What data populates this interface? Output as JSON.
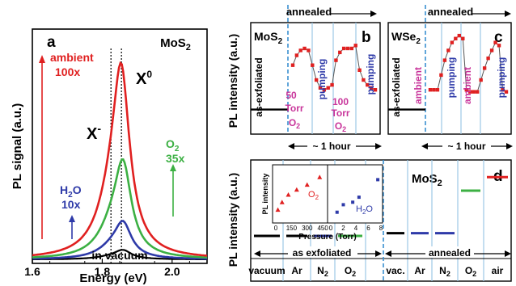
{
  "chart_data": [
    {
      "panel": "a",
      "type": "line",
      "title": "MoS2",
      "xlabel": "Energy (eV)",
      "ylabel": "PL signal (a.u.)",
      "xlim": [
        1.6,
        2.1
      ],
      "ylim": [
        0,
        1.2
      ],
      "x_ticks": [
        "1.6",
        "1.8",
        "2.0"
      ],
      "peak_labels": {
        "main": "X",
        "main_sup": "0",
        "side": "X",
        "side_sup": "-"
      },
      "series": [
        {
          "name": "ambient",
          "factor": "100x",
          "color": "#e02020",
          "peak_energy": 1.855,
          "peak": 1.0
        },
        {
          "name": "O2",
          "factor": "35x",
          "color": "#3cb043",
          "peak_energy": 1.86,
          "peak": 0.52
        },
        {
          "name": "H2O",
          "factor": "10x",
          "color": "#2e3aa8",
          "peak_energy": 1.86,
          "peak": 0.2
        },
        {
          "name": "in vacuum",
          "factor": "",
          "color": "#000000",
          "peak_energy": 1.86,
          "peak": 0.05
        }
      ],
      "reference_lines": [
        1.825,
        1.855
      ]
    },
    {
      "panel": "b",
      "type": "line",
      "title": "MoS2",
      "ylabel": "PL intensity (a.u.)",
      "xlabel": "~ 1 hour",
      "top_label": "annealed",
      "labels": [
        "as-exfoliated",
        "50 Torr O2",
        "pumping",
        "100 Torr O2",
        "pumping"
      ],
      "as_exfoliated_level": 0.2,
      "points": [
        0.65,
        0.75,
        0.8,
        0.82,
        0.8,
        0.65,
        0.5,
        0.42,
        0.4,
        0.42,
        0.45,
        0.7,
        0.78,
        0.82,
        0.82,
        0.82,
        0.85,
        0.6,
        0.5,
        0.45,
        0.42,
        0.4
      ]
    },
    {
      "panel": "c",
      "type": "line",
      "title": "WSe2",
      "xlabel": "~ 1 hour",
      "top_label": "annealed",
      "labels": [
        "as-exfoliated",
        "ambient",
        "pumping",
        "ambient",
        "pumping"
      ],
      "as_exfoliated_level": 0.2,
      "points": [
        0.4,
        0.4,
        0.4,
        0.55,
        0.7,
        0.8,
        0.88,
        0.92,
        0.95,
        0.92,
        0.4,
        0.38,
        0.38,
        0.38,
        0.5,
        0.62,
        0.72,
        0.8,
        0.88,
        0.85,
        0.4,
        0.38
      ]
    },
    {
      "panel": "d",
      "type": "bar",
      "title": "MoS2",
      "ylabel": "PL intensity (a.u.)",
      "groups": [
        "as exfoliated",
        "annealed"
      ],
      "categories": [
        "vacuum",
        "Ar",
        "N2",
        "O2",
        "vac.",
        "Ar",
        "N2",
        "O2",
        "air"
      ],
      "values": [
        0.25,
        0.25,
        0.25,
        0.25,
        0.28,
        0.28,
        0.28,
        0.75,
        0.9
      ],
      "colors": [
        "#000000",
        "#000000",
        "#2e3aa8",
        "#3cb043",
        "#000000",
        "#2e3aa8",
        "#2e3aa8",
        "#3cb043",
        "#e02020"
      ],
      "inset": {
        "ylabel": "PL intensity",
        "xlabel": "Pressure (Torr)",
        "left": {
          "label": "O2",
          "x_ticks": [
            "0",
            "150",
            "300",
            "450"
          ],
          "points": [
            [
              20,
              0.2
            ],
            [
              60,
              0.35
            ],
            [
              120,
              0.5
            ],
            [
              200,
              0.6
            ],
            [
              300,
              0.7
            ],
            [
              420,
              0.85
            ]
          ]
        },
        "right": {
          "label": "H2O",
          "x_ticks": [
            "0",
            "2",
            "4",
            "6",
            "8"
          ],
          "points": [
            [
              1,
              0.15
            ],
            [
              2,
              0.3
            ],
            [
              3.5,
              0.35
            ],
            [
              4.5,
              0.45
            ],
            [
              7.5,
              0.8
            ]
          ]
        }
      }
    }
  ]
}
